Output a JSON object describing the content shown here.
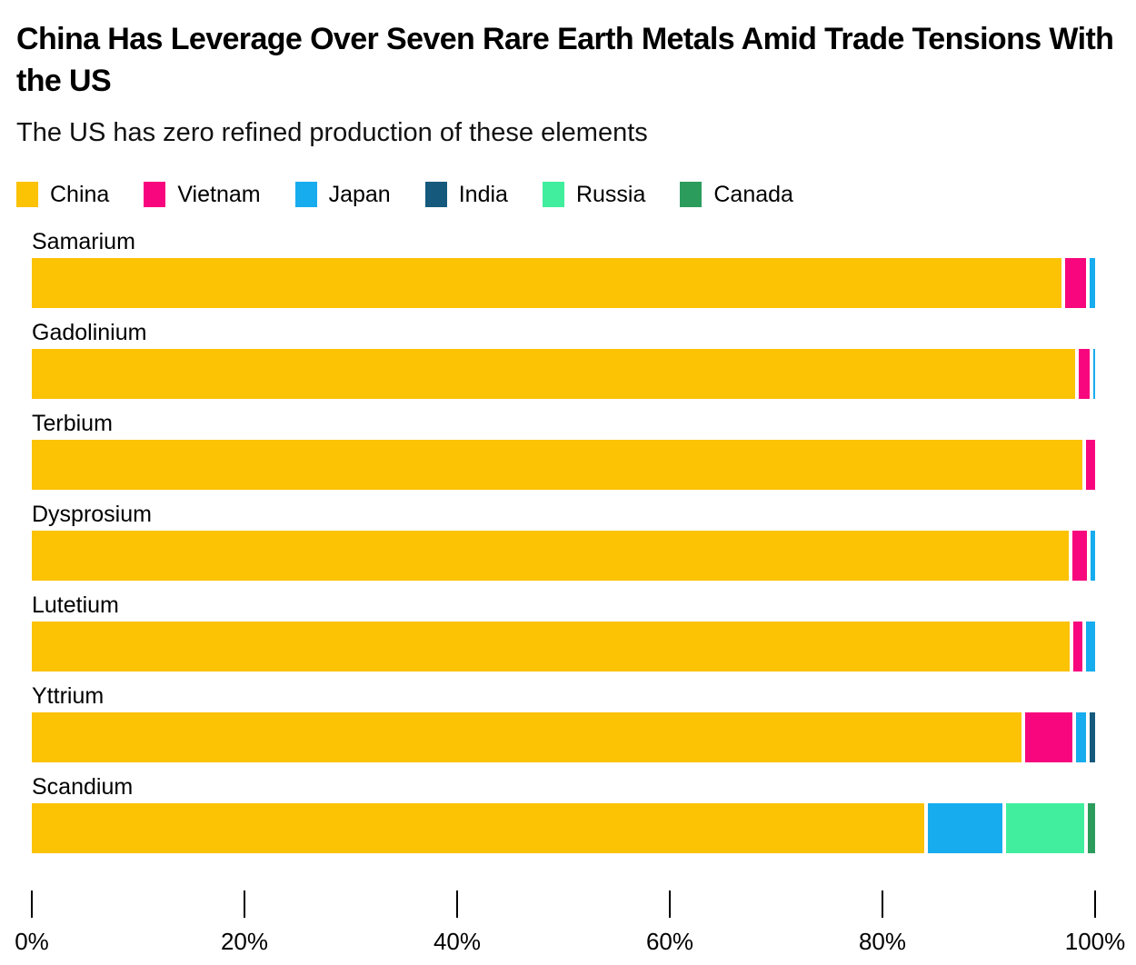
{
  "header": {
    "title": "China Has Leverage Over Seven Rare Earth Metals Amid Trade Tensions With the US",
    "subtitle": "The US has zero refined production of these elements"
  },
  "legend": [
    {
      "label": "China",
      "color": "#FCC204"
    },
    {
      "label": "Vietnam",
      "color": "#F7067E"
    },
    {
      "label": "Japan",
      "color": "#17ACEE"
    },
    {
      "label": "India",
      "color": "#15597D"
    },
    {
      "label": "Russia",
      "color": "#41EE9E"
    },
    {
      "label": "Canada",
      "color": "#2B9C5C"
    }
  ],
  "chart_data": {
    "type": "bar",
    "orientation": "horizontal-stacked",
    "unit": "percent share of refined production",
    "categories": [
      "Samarium",
      "Gadolinium",
      "Terbium",
      "Dysprosium",
      "Lutetium",
      "Yttrium",
      "Scandium"
    ],
    "series": [
      {
        "name": "China",
        "color": "#FCC204",
        "values": [
          97.5,
          98.8,
          99.1,
          98.2,
          98.3,
          94.0,
          84.8
        ]
      },
      {
        "name": "Vietnam",
        "color": "#F7067E",
        "values": [
          2.0,
          1.0,
          0.9,
          1.4,
          0.8,
          4.5,
          0
        ]
      },
      {
        "name": "Japan",
        "color": "#17ACEE",
        "values": [
          0.5,
          0.2,
          0,
          0.4,
          0.9,
          1.0,
          7.1
        ]
      },
      {
        "name": "India",
        "color": "#15597D",
        "values": [
          0,
          0,
          0,
          0,
          0,
          0.5,
          0
        ]
      },
      {
        "name": "Russia",
        "color": "#41EE9E",
        "values": [
          0,
          0,
          0,
          0,
          0,
          0,
          7.4
        ]
      },
      {
        "name": "Canada",
        "color": "#2B9C5C",
        "values": [
          0,
          0,
          0,
          0,
          0,
          0,
          0.7
        ]
      }
    ],
    "x_ticks": [
      {
        "label": "0%",
        "value": 0
      },
      {
        "label": "20%",
        "value": 20
      },
      {
        "label": "40%",
        "value": 40
      },
      {
        "label": "60%",
        "value": 60
      },
      {
        "label": "80%",
        "value": 80
      },
      {
        "label": "100%",
        "value": 100
      }
    ],
    "xlim": [
      0,
      100
    ],
    "grid": false,
    "legend_position": "top"
  }
}
